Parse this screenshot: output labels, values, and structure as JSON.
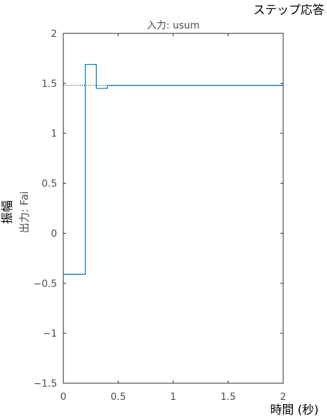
{
  "chart_data": {
    "type": "line",
    "title": "ステップ応答",
    "subtitle": "入力: usum",
    "xlabel": "時間 (秒)",
    "ylabel": "振幅",
    "output_label": "出力: Fai",
    "xlim": [
      0,
      2
    ],
    "ylim": [
      -1.5,
      2
    ],
    "x_ticks": [
      0,
      0.5,
      1,
      1.5,
      2
    ],
    "x_tick_labels": [
      "0",
      "0.5",
      "1",
      "1.5",
      "2"
    ],
    "y_ticks": [
      -1.5,
      -1,
      -0.5,
      0,
      0.5,
      1,
      1.5,
      2
    ],
    "y_tick_labels": [
      "−1.5",
      "−1",
      "−0.5",
      "0",
      "0.5",
      "1",
      "1.5",
      "2"
    ],
    "grid": false,
    "steady_state": 1.48,
    "series": [
      {
        "style": "step",
        "color": "#0072bd",
        "x": [
          0,
          0.2,
          0.2,
          0.3,
          0.3,
          0.4,
          0.4,
          0.5,
          0.5,
          2
        ],
        "y": [
          -0.41,
          -0.41,
          1.69,
          1.69,
          1.45,
          1.45,
          1.48,
          1.48,
          1.48,
          1.48
        ]
      }
    ],
    "steady_state_line": {
      "color": "#000000",
      "style": "dotted"
    }
  }
}
